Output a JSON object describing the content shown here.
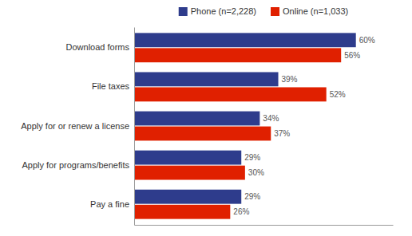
{
  "chart_data": {
    "type": "bar",
    "orientation": "horizontal",
    "categories": [
      "Download forms",
      "File taxes",
      "Apply for or renew a license",
      "Apply for programs/benefits",
      "Pay a fine"
    ],
    "series": [
      {
        "name": "Phone (n=2,228)",
        "color": "#2E3C8C",
        "values": [
          60,
          39,
          34,
          29,
          29
        ],
        "value_labels": [
          "60%",
          "39%",
          "34%",
          "29%",
          "29%"
        ]
      },
      {
        "name": "Online (n=1,033)",
        "color": "#E02000",
        "values": [
          56,
          52,
          37,
          30,
          26
        ],
        "value_labels": [
          "56%",
          "52%",
          "37%",
          "30%",
          "26%"
        ]
      }
    ],
    "xlim": [
      0,
      70
    ],
    "data_labels": true,
    "tick_labels": "y",
    "legend": "top",
    "grid": false
  }
}
